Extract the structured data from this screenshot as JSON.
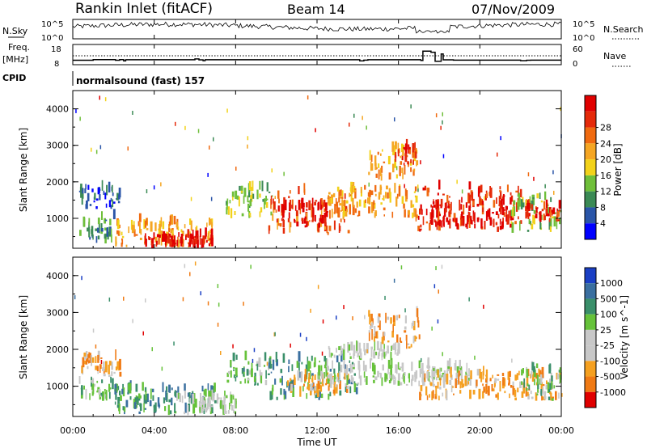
{
  "header": {
    "title": "Rankin Inlet (fitACF)",
    "beam": "Beam 14",
    "date": "07/Nov/2009"
  },
  "colors": {
    "power_scale": [
      "#0000ff",
      "#2a55a8",
      "#3b8a55",
      "#6fbf3a",
      "#f2d21a",
      "#f5a623",
      "#f06a10",
      "#e52a0a",
      "#e00000"
    ],
    "velocity_scale": [
      "#1a3fc4",
      "#3a6fa0",
      "#3a8f6a",
      "#66c23a",
      "#c8c8c8",
      "#c8c8c8",
      "#f5a020",
      "#f07a14",
      "#e00000"
    ]
  },
  "chart_data": [
    {
      "type": "line",
      "panel": "sky-search-noise",
      "left_label": "N.Sky",
      "right_label": "N.Search",
      "left_ticks": [
        "10^5",
        "10^0"
      ],
      "right_ticks": [
        "10^5",
        "10^0"
      ],
      "x_range": [
        "00:00",
        "24:00"
      ]
    },
    {
      "type": "line",
      "panel": "frequency-nave",
      "left_label": "Freq. [MHz]",
      "right_label": "Nave",
      "left_ticks": [
        18,
        8
      ],
      "right_ticks": [
        60,
        0
      ],
      "freq_steps_hours": [
        0,
        1.0,
        2.1,
        2.3,
        2.5,
        2.6,
        6.0,
        6.2,
        6.4,
        6.5,
        14.1,
        14.3,
        14.5,
        17.1,
        17.2,
        17.6,
        17.8,
        18.1,
        18.2,
        18.7,
        22.0,
        22.3,
        22.5,
        24.0
      ],
      "freq_steps_mhz": [
        10.8,
        11.3,
        10.8,
        11.3,
        10.3,
        11.2,
        11.8,
        11.1,
        10.5,
        11.2,
        10.3,
        10.9,
        11.2,
        10.7,
        17.8,
        17.0,
        10.0,
        15.6,
        11.1,
        10.9,
        10.5,
        10.8,
        10.9,
        10.9
      ],
      "x_range": [
        "00:00",
        "24:00"
      ]
    },
    {
      "type": "heatmap",
      "panel": "power",
      "cpid_label": "CPID",
      "cpid_text": "normalsound (fast) 157",
      "ylabel": "Slant Range [km]",
      "yticks": [
        1000,
        2000,
        3000,
        4000
      ],
      "ylim": [
        180,
        4500
      ],
      "colorbar_label": "Power [dB]",
      "colorbar_ticks": [
        "4",
        "8",
        "12",
        "16",
        "20",
        "24",
        "28"
      ],
      "regions": [
        {
          "t0": 0.3,
          "t1": 2.3,
          "r0": 1250,
          "r1": 1800,
          "level": 1
        },
        {
          "t0": 0.3,
          "t1": 2.0,
          "r0": 300,
          "r1": 1000,
          "level": 2
        },
        {
          "t0": 2.0,
          "t1": 7.0,
          "r0": 200,
          "r1": 900,
          "level": 5
        },
        {
          "t0": 3.5,
          "t1": 6.8,
          "r0": 180,
          "r1": 500,
          "level": 8
        },
        {
          "t0": 7.5,
          "t1": 9.8,
          "r0": 1000,
          "r1": 1800,
          "level": 3
        },
        {
          "t0": 9.6,
          "t1": 13.5,
          "r0": 500,
          "r1": 1700,
          "level": 6
        },
        {
          "t0": 10.0,
          "t1": 12.5,
          "r0": 700,
          "r1": 1300,
          "level": 8
        },
        {
          "t0": 12.5,
          "t1": 17.0,
          "r0": 1000,
          "r1": 1800,
          "level": 5
        },
        {
          "t0": 14.5,
          "t1": 17.0,
          "r0": 2000,
          "r1": 2900,
          "level": 5
        },
        {
          "t0": 15.8,
          "t1": 16.8,
          "r0": 2400,
          "r1": 2900,
          "level": 7
        },
        {
          "t0": 16.8,
          "t1": 22.0,
          "r0": 600,
          "r1": 1800,
          "level": 7
        },
        {
          "t0": 17.5,
          "t1": 21.5,
          "r0": 700,
          "r1": 1400,
          "level": 8
        },
        {
          "t0": 21.5,
          "t1": 24.0,
          "r0": 600,
          "r1": 1600,
          "level": 3
        },
        {
          "t0": 22.2,
          "t1": 24.0,
          "r0": 900,
          "r1": 1300,
          "level": 7
        }
      ]
    },
    {
      "type": "heatmap",
      "panel": "velocity",
      "ylabel": "Slant Range [km]",
      "yticks": [
        1000,
        2000,
        3000,
        4000
      ],
      "ylim": [
        180,
        4500
      ],
      "colorbar_label": "Velocity [m s^-1]",
      "colorbar_ticks": [
        "1000",
        "500",
        "100",
        "25",
        "-25",
        "-100",
        "-500",
        "-1000"
      ],
      "xlabel": "Time UT",
      "xticks": [
        "00:00",
        "04:00",
        "08:00",
        "12:00",
        "16:00",
        "20:00",
        "00:00"
      ],
      "regions": [
        {
          "t0": 0.3,
          "t1": 2.3,
          "r0": 1250,
          "r1": 1800,
          "level": 6
        },
        {
          "t0": 0.3,
          "t1": 2.2,
          "r0": 600,
          "r1": 1100,
          "level": 3
        },
        {
          "t0": 2.0,
          "t1": 7.0,
          "r0": 200,
          "r1": 900,
          "level": 2
        },
        {
          "t0": 5.0,
          "t1": 8.0,
          "r0": 200,
          "r1": 700,
          "level": 4
        },
        {
          "t0": 7.5,
          "t1": 9.8,
          "r0": 1000,
          "r1": 1800,
          "level": 3
        },
        {
          "t0": 9.6,
          "t1": 14.0,
          "r0": 600,
          "r1": 1700,
          "level": 2
        },
        {
          "t0": 10.5,
          "t1": 13.5,
          "r0": 700,
          "r1": 1200,
          "level": 6
        },
        {
          "t0": 12.0,
          "t1": 19.5,
          "r0": 1000,
          "r1": 1500,
          "level": 4
        },
        {
          "t0": 12.5,
          "t1": 16.0,
          "r0": 1700,
          "r1": 2000,
          "level": 4
        },
        {
          "t0": 14.5,
          "t1": 17.0,
          "r0": 2000,
          "r1": 2900,
          "level": 6
        },
        {
          "t0": 17.0,
          "t1": 24.0,
          "r0": 600,
          "r1": 1300,
          "level": 6
        },
        {
          "t0": 22.0,
          "t1": 24.0,
          "r0": 600,
          "r1": 1500,
          "level": 3
        }
      ]
    }
  ]
}
